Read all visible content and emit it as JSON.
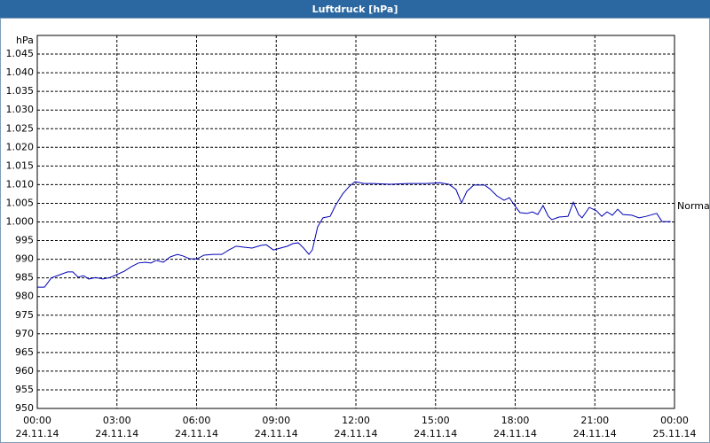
{
  "chart_data": {
    "type": "line",
    "title": "Luftdruck [hPa]",
    "y_unit": "hPa",
    "annotation": "Normal",
    "x": [
      0,
      0.27,
      0.53,
      0.87,
      1.14,
      1.34,
      1.54,
      1.74,
      1.94,
      2.2,
      2.47,
      2.74,
      3.0,
      3.28,
      3.54,
      3.81,
      4.08,
      4.28,
      4.48,
      4.75,
      5.0,
      5.28,
      5.48,
      5.75,
      6.02,
      6.28,
      6.62,
      6.95,
      7.22,
      7.49,
      7.82,
      8.09,
      8.42,
      8.62,
      8.89,
      9.16,
      9.42,
      9.63,
      9.83,
      10.03,
      10.23,
      10.36,
      10.56,
      10.76,
      11.03,
      11.23,
      11.5,
      11.76,
      11.97,
      12.3,
      12.63,
      13.3,
      13.97,
      14.64,
      15.17,
      15.5,
      15.77,
      15.98,
      16.18,
      16.44,
      16.84,
      17.04,
      17.31,
      17.58,
      17.78,
      17.98,
      18.18,
      18.45,
      18.65,
      18.85,
      19.05,
      19.25,
      19.38,
      19.65,
      19.99,
      20.19,
      20.39,
      20.52,
      20.79,
      21.06,
      21.26,
      21.46,
      21.66,
      21.86,
      22.06,
      22.39,
      22.66,
      22.93,
      23.33,
      23.53,
      23.86
    ],
    "series": [
      {
        "name": "Luftdruck",
        "color": "#0000b4",
        "values": [
          982.5,
          982.5,
          985,
          985.9,
          986.6,
          986.6,
          985.2,
          985.6,
          984.7,
          985.1,
          984.7,
          985.1,
          985.9,
          986.8,
          988,
          989,
          989.2,
          989,
          989.7,
          989.2,
          990.6,
          991.3,
          990.9,
          990.1,
          990.1,
          991.1,
          991.3,
          991.3,
          992.5,
          993.5,
          993.2,
          993,
          993.7,
          993.9,
          992.5,
          993,
          993.5,
          994.2,
          994.4,
          993,
          991.3,
          992.5,
          998.7,
          1001.1,
          1001.5,
          1004.4,
          1007.5,
          1009.6,
          1010.8,
          1010.3,
          1010.3,
          1010.1,
          1010.3,
          1010.3,
          1010.5,
          1010.1,
          1008.7,
          1005.1,
          1008.2,
          1009.9,
          1009.9,
          1008.9,
          1007,
          1005.8,
          1006.5,
          1004.4,
          1002.5,
          1002.3,
          1002.7,
          1002,
          1004.4,
          1001.5,
          1000.6,
          1001.3,
          1001.5,
          1005.3,
          1002,
          1001.1,
          1003.9,
          1003,
          1001.5,
          1002.7,
          1001.8,
          1003.4,
          1002,
          1001.8,
          1001.1,
          1001.5,
          1002.3,
          1000.1,
          1000.1
        ]
      }
    ],
    "xlim": [
      0,
      24
    ],
    "xticks": [
      {
        "value": 0,
        "label": "00:00"
      },
      {
        "value": 3,
        "label": "03:00"
      },
      {
        "value": 6,
        "label": "06:00"
      },
      {
        "value": 9,
        "label": "09:00"
      },
      {
        "value": 12,
        "label": "12:00"
      },
      {
        "value": 15,
        "label": "15:00"
      },
      {
        "value": 18,
        "label": "18:00"
      },
      {
        "value": 21,
        "label": "21:00"
      },
      {
        "value": 24,
        "label": "00:00"
      }
    ],
    "xtick_dates": [
      "24.11.14",
      "24.11.14",
      "24.11.14",
      "24.11.14",
      "24.11.14",
      "24.11.14",
      "24.11.14",
      "24.11.14",
      "25.11.14"
    ],
    "ylim": [
      950,
      1050
    ],
    "yticks": [
      950,
      955,
      960,
      965,
      970,
      975,
      980,
      985,
      990,
      995,
      {
        "value": 1000,
        "label": "1.000"
      },
      {
        "value": 1005,
        "label": "1.005"
      },
      {
        "value": 1010,
        "label": "1.010"
      },
      {
        "value": 1015,
        "label": "1.015"
      },
      {
        "value": 1020,
        "label": "1.020"
      },
      {
        "value": 1025,
        "label": "1.025"
      },
      {
        "value": 1030,
        "label": "1.030"
      },
      {
        "value": 1035,
        "label": "1.035"
      },
      {
        "value": 1040,
        "label": "1.040"
      },
      {
        "value": 1045,
        "label": "1.045"
      }
    ],
    "grid": true
  }
}
